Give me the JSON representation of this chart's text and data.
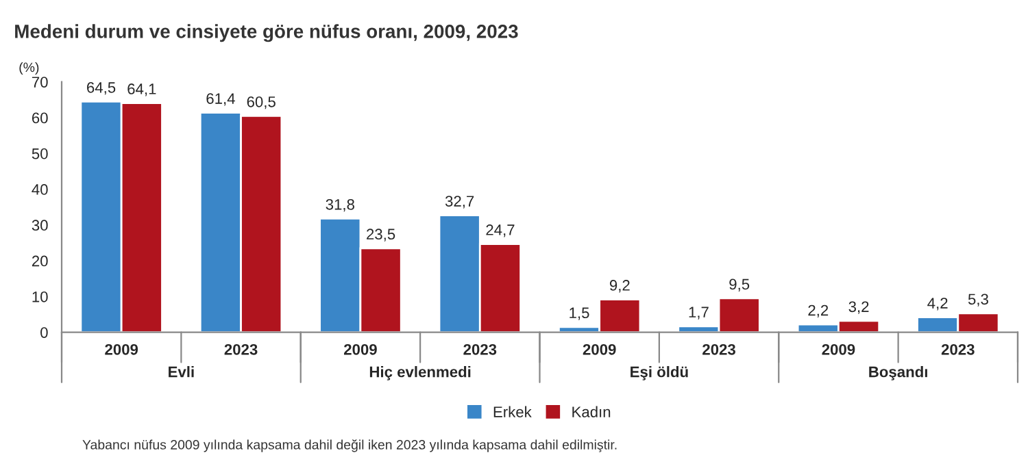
{
  "chart_data": {
    "type": "bar",
    "title": "Medeni durum ve cinsiyete göre nüfus oranı, 2009, 2023",
    "ylabel": "(%)",
    "categories": [
      "2009",
      "2023",
      "2009",
      "2023",
      "2009",
      "2023",
      "2009",
      "2023"
    ],
    "series": [
      {
        "name": "Erkek",
        "color": "#3a86c8",
        "values": [
          64.5,
          61.4,
          31.8,
          32.7,
          1.5,
          1.7,
          2.2,
          4.2
        ],
        "value_labels": [
          "64,5",
          "61,4",
          "31,8",
          "32,7",
          "1,5",
          "1,7",
          "2,2",
          "4,2"
        ]
      },
      {
        "name": "Kadın",
        "color": "#b0141e",
        "values": [
          64.1,
          60.5,
          23.5,
          24.7,
          9.2,
          9.5,
          3.2,
          5.3
        ],
        "value_labels": [
          "64,1",
          "60,5",
          "23,5",
          "24,7",
          "9,2",
          "9,5",
          "3,2",
          "5,3"
        ]
      }
    ],
    "ylim": [
      0,
      70
    ],
    "yticks": [
      0,
      10,
      20,
      30,
      40,
      50,
      60,
      70
    ],
    "legend": "bottom",
    "annotations": [
      "Evli",
      "Hiç evlenmedi",
      "Eşi öldü",
      "Boşandı",
      "Yabancı nüfus 2009 yılında kapsama dahil değil iken 2023 yılında kapsama dahil edilmiştir."
    ]
  }
}
